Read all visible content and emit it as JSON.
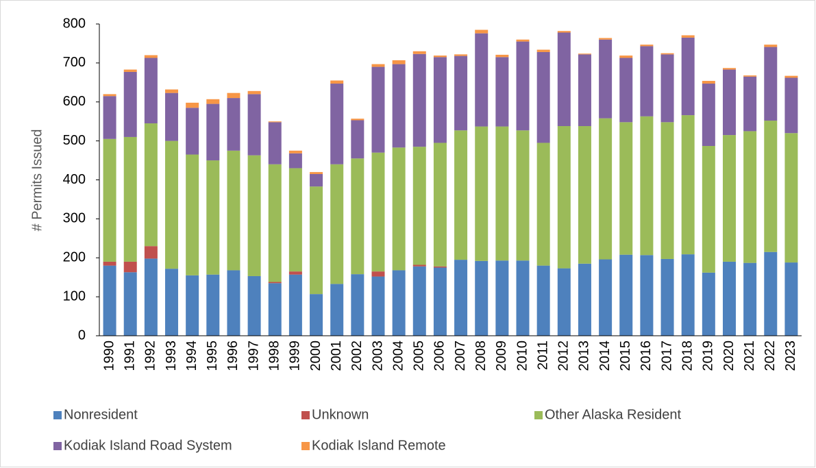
{
  "chart_data": {
    "type": "stacked_bar",
    "ylabel": "# Permits Issued",
    "categories": [
      "1990",
      "1991",
      "1992",
      "1993",
      "1994",
      "1995",
      "1996",
      "1997",
      "1998",
      "1999",
      "2000",
      "2001",
      "2002",
      "2003",
      "2004",
      "2005",
      "2006",
      "2007",
      "2008",
      "2009",
      "2010",
      "2011",
      "2012",
      "2013",
      "2014",
      "2015",
      "2016",
      "2017",
      "2018",
      "2019",
      "2020",
      "2021",
      "2022",
      "2023"
    ],
    "series": [
      {
        "name": "Nonresident",
        "color": "#4e81bd",
        "values": [
          180,
          163,
          198,
          172,
          155,
          157,
          168,
          153,
          135,
          157,
          107,
          133,
          158,
          152,
          168,
          178,
          175,
          195,
          192,
          193,
          193,
          180,
          173,
          185,
          196,
          208,
          207,
          197,
          209,
          162,
          190,
          187,
          215,
          188
        ]
      },
      {
        "name": "Unknown",
        "color": "#c0504d",
        "values": [
          10,
          27,
          32,
          0,
          0,
          0,
          0,
          0,
          3,
          8,
          0,
          0,
          0,
          13,
          0,
          4,
          3,
          0,
          0,
          0,
          0,
          0,
          0,
          0,
          0,
          0,
          0,
          0,
          0,
          0,
          0,
          0,
          0,
          0
        ]
      },
      {
        "name": "Other Alaska Resident",
        "color": "#9bbb59",
        "values": [
          315,
          320,
          315,
          328,
          310,
          293,
          307,
          310,
          302,
          265,
          276,
          307,
          297,
          305,
          315,
          303,
          317,
          332,
          345,
          344,
          334,
          315,
          365,
          353,
          362,
          340,
          356,
          351,
          357,
          325,
          325,
          338,
          337,
          332
        ]
      },
      {
        "name": "Kodiak Island Road System",
        "color": "#8064a2",
        "values": [
          110,
          167,
          168,
          123,
          120,
          145,
          135,
          157,
          108,
          38,
          32,
          207,
          98,
          220,
          214,
          238,
          220,
          191,
          239,
          178,
          228,
          233,
          240,
          184,
          202,
          165,
          180,
          174,
          199,
          160,
          168,
          140,
          189,
          142
        ]
      },
      {
        "name": "Kodiak Island Remote",
        "color": "#f79646",
        "values": [
          5,
          6,
          7,
          9,
          13,
          12,
          13,
          8,
          2,
          7,
          5,
          8,
          4,
          7,
          10,
          7,
          4,
          4,
          9,
          6,
          5,
          6,
          4,
          2,
          4,
          6,
          4,
          3,
          6,
          7,
          4,
          3,
          6,
          5
        ]
      }
    ],
    "ylim": [
      0,
      800
    ],
    "yticks": [
      0,
      100,
      200,
      300,
      400,
      500,
      600,
      700,
      800
    ],
    "grid": false
  }
}
